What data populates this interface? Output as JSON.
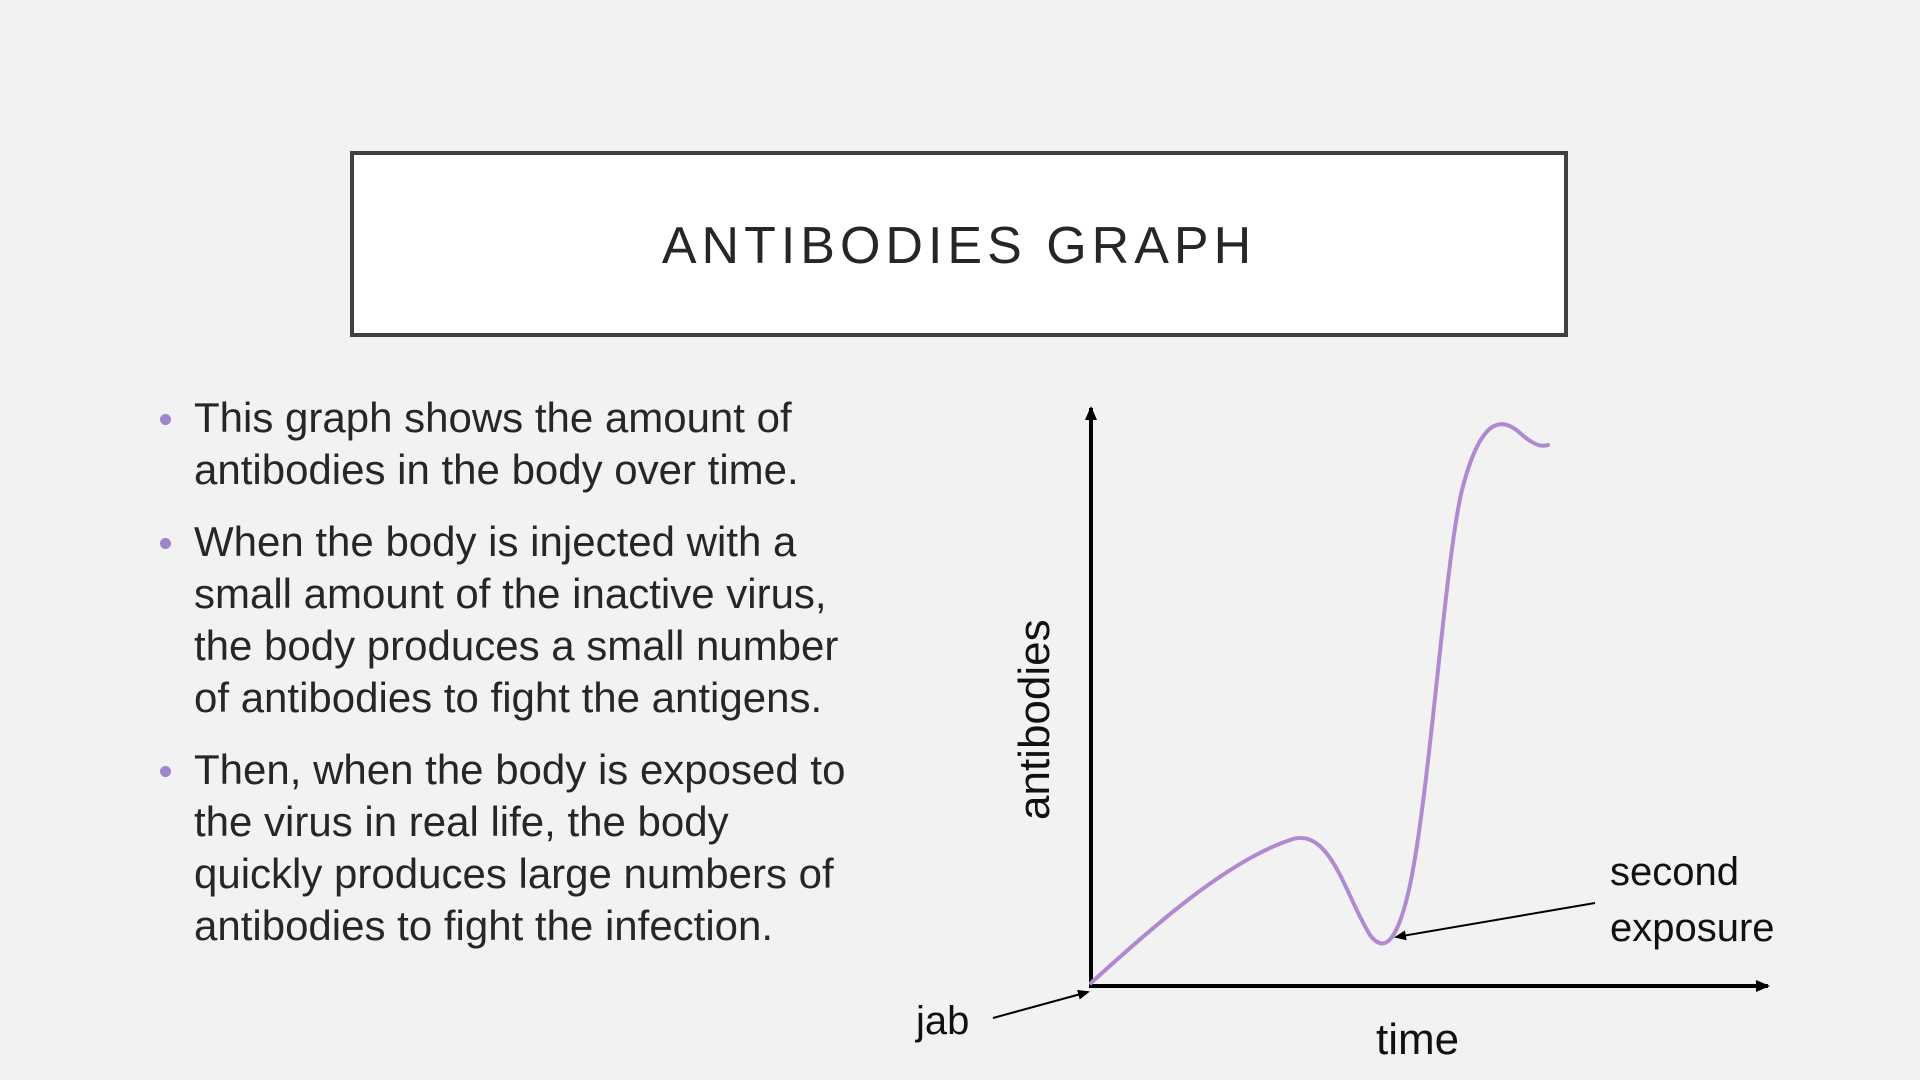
{
  "slide": {
    "title": "ANTIBODIES GRAPH",
    "bullets": [
      {
        "lines": [
          "This graph shows the amount of",
          "antibodies in the body over time."
        ]
      },
      {
        "lines": [
          "When the body is injected with a",
          "small amount of the inactive virus,",
          "the body produces a small number",
          "of antibodies to fight the antigens."
        ]
      },
      {
        "lines": [
          "Then, when the body is exposed to",
          "the virus in real life, the body",
          "quickly produces large numbers of",
          "antibodies to fight the infection."
        ]
      }
    ]
  },
  "diagram": {
    "y_axis_label": "antibodies",
    "x_axis_label": "time",
    "jab_label": "jab",
    "second_exposure_label_line1": "second",
    "second_exposure_label_line2": "exposure",
    "curve_color": "#b08ad0",
    "bullet_color": "#9d86c9"
  }
}
